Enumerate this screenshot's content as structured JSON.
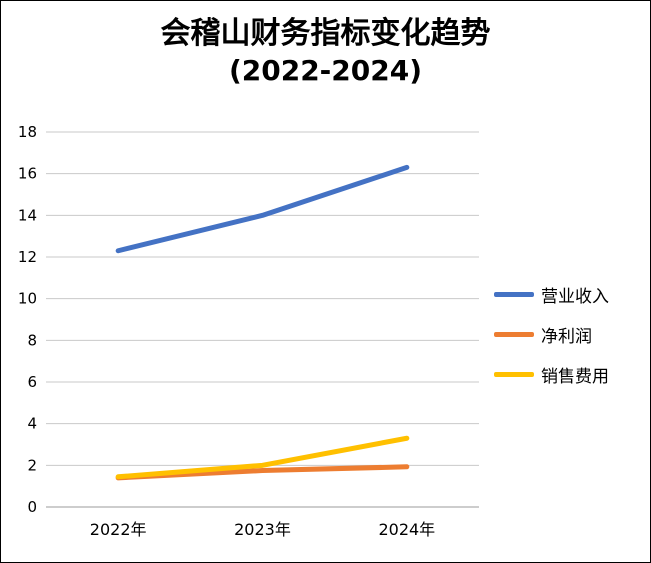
{
  "title": "会稽山财务指标变化趋势",
  "subtitle": "(2022-2024)",
  "chart_data": {
    "type": "line",
    "title": "会稽山财务指标变化趋势 (2022-2024)",
    "categories": [
      "2022年",
      "2023年",
      "2024年"
    ],
    "series": [
      {
        "name": "营业收入",
        "color": "#4472C4",
        "values": [
          12.3,
          14.0,
          16.3
        ]
      },
      {
        "name": "净利润",
        "color": "#ED7D31",
        "values": [
          1.4,
          1.75,
          1.93
        ]
      },
      {
        "name": "销售费用",
        "color": "#FFC000",
        "values": [
          1.45,
          2.0,
          3.3
        ]
      }
    ],
    "xlabel": "",
    "ylabel": "",
    "ylim": [
      0,
      18
    ],
    "ytick_step": 2,
    "grid": true,
    "grid_color": "#c9c9c9",
    "axis_color": "#9b9b9b",
    "legend_position": "right",
    "line_width": 5
  }
}
